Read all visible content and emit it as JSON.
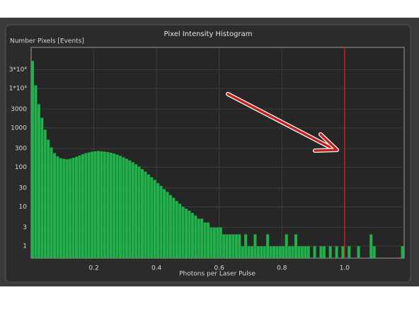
{
  "chart_data": {
    "type": "histogram",
    "title": "Pixel Intensity Histogram",
    "y_label": "Number Pixels [Events]",
    "x_label": "Photons per Laser Pulse",
    "color": "#22b04b",
    "vline": 1.0,
    "vline_color": "#c0231c",
    "yscale": "log",
    "grid": true,
    "xlim": [
      0,
      1.19
    ],
    "ylim": [
      0.5,
      110000
    ],
    "xticks": [
      0.2,
      0.4,
      0.6,
      0.8,
      {
        "value": 1.0,
        "label": "1.0"
      }
    ],
    "yticks": [
      1,
      3,
      10,
      30,
      100,
      300,
      1000,
      3000,
      {
        "value": 10000,
        "label": "1*10⁴"
      },
      {
        "value": 30000,
        "label": "3*10⁴"
      }
    ],
    "bins": [
      0,
      0.01,
      0.02,
      0.03,
      0.04,
      0.05,
      0.06,
      0.07,
      0.08,
      0.09,
      0.1,
      0.11,
      0.12,
      0.13,
      0.14,
      0.15,
      0.16,
      0.17,
      0.18,
      0.19,
      0.2,
      0.21,
      0.22,
      0.23,
      0.24,
      0.25,
      0.26,
      0.27,
      0.28,
      0.29,
      0.3,
      0.31,
      0.32,
      0.33,
      0.34,
      0.35,
      0.36,
      0.37,
      0.38,
      0.39,
      0.4,
      0.41,
      0.42,
      0.43,
      0.44,
      0.45,
      0.46,
      0.47,
      0.48,
      0.49,
      0.5,
      0.51,
      0.52,
      0.53,
      0.54,
      0.55,
      0.56,
      0.57,
      0.58,
      0.59,
      0.6,
      0.61,
      0.62,
      0.63,
      0.64,
      0.65,
      0.66,
      0.67,
      0.68,
      0.69,
      0.7,
      0.71,
      0.72,
      0.73,
      0.74,
      0.75,
      0.76,
      0.77,
      0.78,
      0.79,
      0.8,
      0.81,
      0.82,
      0.83,
      0.84,
      0.85,
      0.86,
      0.87,
      0.88,
      0.89,
      0.9,
      0.91,
      0.92,
      0.93,
      0.94,
      0.95,
      0.96,
      0.97,
      0.98,
      0.99,
      1.0,
      1.01,
      1.02,
      1.03,
      1.04,
      1.05,
      1.06,
      1.07,
      1.08,
      1.09,
      1.1,
      1.11,
      1.12,
      1.13,
      1.14,
      1.15,
      1.16,
      1.17,
      1.18,
      1.19
    ],
    "values": [
      50000,
      12000,
      4000,
      1800,
      900,
      500,
      320,
      230,
      190,
      170,
      165,
      160,
      165,
      175,
      185,
      200,
      215,
      230,
      240,
      250,
      255,
      260,
      255,
      250,
      245,
      235,
      225,
      210,
      195,
      180,
      165,
      150,
      135,
      120,
      105,
      90,
      78,
      66,
      56,
      48,
      40,
      34,
      28,
      24,
      20,
      17,
      14,
      12,
      10,
      9,
      8,
      7,
      6,
      5,
      5,
      4,
      4,
      3,
      3,
      3,
      3,
      2,
      2,
      2,
      2,
      2,
      2,
      1,
      2,
      1,
      1,
      2,
      1,
      1,
      1,
      2,
      1,
      1,
      1,
      1,
      1,
      2,
      1,
      1,
      2,
      1,
      1,
      1,
      1,
      0,
      1,
      0,
      1,
      1,
      0,
      1,
      0,
      1,
      0,
      1,
      0,
      1,
      0,
      0,
      1,
      0,
      0,
      0,
      2,
      1,
      0,
      0,
      0,
      0,
      0,
      0,
      0,
      0,
      1
    ]
  }
}
